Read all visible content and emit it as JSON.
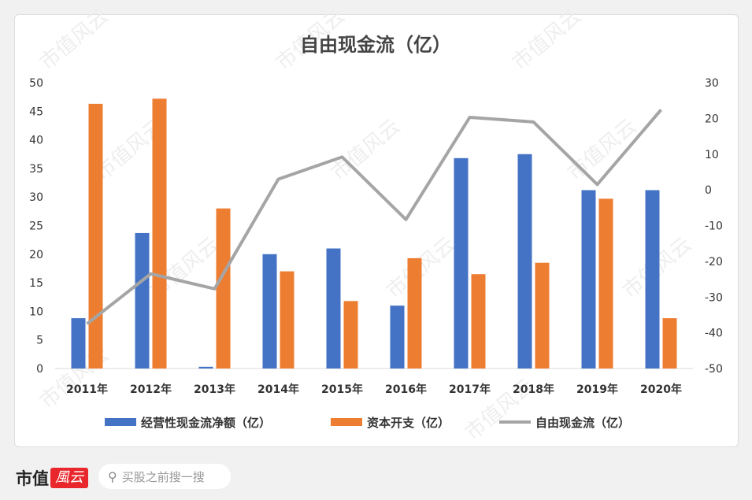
{
  "chart_data": {
    "type": "bar",
    "title": "自由现金流（亿）",
    "categories": [
      "2011年",
      "2012年",
      "2013年",
      "2014年",
      "2015年",
      "2016年",
      "2017年",
      "2018年",
      "2019年",
      "2020年"
    ],
    "series": [
      {
        "name": "经营性现金流净额（亿）",
        "type": "bar",
        "axis": "left",
        "color": "#4472c4",
        "values": [
          8.8,
          23.7,
          0.3,
          20.0,
          21.0,
          11.0,
          36.8,
          37.5,
          31.2,
          31.2
        ]
      },
      {
        "name": "资本开支（亿）",
        "type": "bar",
        "axis": "left",
        "color": "#ed7d31",
        "values": [
          46.3,
          47.2,
          28.0,
          17.0,
          11.8,
          19.3,
          16.5,
          18.5,
          29.7,
          8.8
        ]
      },
      {
        "name": "自由现金流（亿）",
        "type": "line",
        "axis": "right",
        "color": "#a5a5a5",
        "values": [
          -37.5,
          -23.5,
          -27.7,
          3.0,
          9.2,
          -8.3,
          20.3,
          19.0,
          1.5,
          22.4
        ]
      }
    ],
    "left_axis": {
      "ylim": [
        0,
        50
      ],
      "ticks": [
        0,
        5,
        10,
        15,
        20,
        25,
        30,
        35,
        40,
        45,
        50
      ]
    },
    "right_axis": {
      "ylim": [
        -50,
        30
      ],
      "ticks": [
        -50,
        -40,
        -30,
        -20,
        -10,
        0,
        10,
        20,
        30
      ]
    },
    "grid": false,
    "legend": "bottom"
  },
  "footer": {
    "brand": "市值",
    "logo": "風云",
    "search_placeholder": "买股之前搜一搜",
    "search_icon": "search-icon"
  },
  "watermark": "市值风云"
}
